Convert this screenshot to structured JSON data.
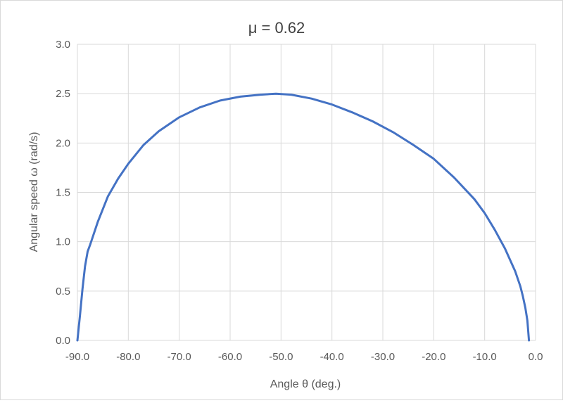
{
  "chart_data": {
    "type": "line",
    "title": "μ = 0.62",
    "xlabel": "Angle θ  (deg.)",
    "ylabel": "Angular speed ω  (rad/s)",
    "xlim": [
      -90,
      0
    ],
    "ylim": [
      0,
      3
    ],
    "x_ticks": [
      "-90.0",
      "-80.0",
      "-70.0",
      "-60.0",
      "-50.0",
      "-40.0",
      "-30.0",
      "-20.0",
      "-10.0",
      "0.0"
    ],
    "y_ticks": [
      "0.0",
      "0.5",
      "1.0",
      "1.5",
      "2.0",
      "2.5",
      "3.0"
    ],
    "grid": true,
    "series_color": "#4472C4",
    "series": [
      {
        "x": [
          -90.0,
          -89.5,
          -89.0,
          -88.5,
          -88.0,
          -87.5,
          -86.0,
          -84.0,
          -82.0,
          -80.0,
          -77.0,
          -74.0,
          -70.0,
          -66.0,
          -62.0,
          -58.0,
          -54.0,
          -51.0,
          -48.0,
          -44.0,
          -40.0,
          -36.0,
          -32.0,
          -28.0,
          -24.0,
          -20.0,
          -16.0,
          -12.0,
          -10.0,
          -8.0,
          -6.0,
          -4.0,
          -3.0,
          -2.5,
          -2.0,
          -1.6,
          -1.3
        ],
        "y": [
          0.0,
          0.25,
          0.52,
          0.75,
          0.9,
          0.97,
          1.2,
          1.46,
          1.64,
          1.79,
          1.98,
          2.12,
          2.26,
          2.36,
          2.43,
          2.47,
          2.49,
          2.5,
          2.49,
          2.45,
          2.39,
          2.31,
          2.22,
          2.11,
          1.98,
          1.84,
          1.65,
          1.43,
          1.29,
          1.12,
          0.93,
          0.7,
          0.55,
          0.45,
          0.33,
          0.2,
          0.0
        ]
      }
    ]
  }
}
